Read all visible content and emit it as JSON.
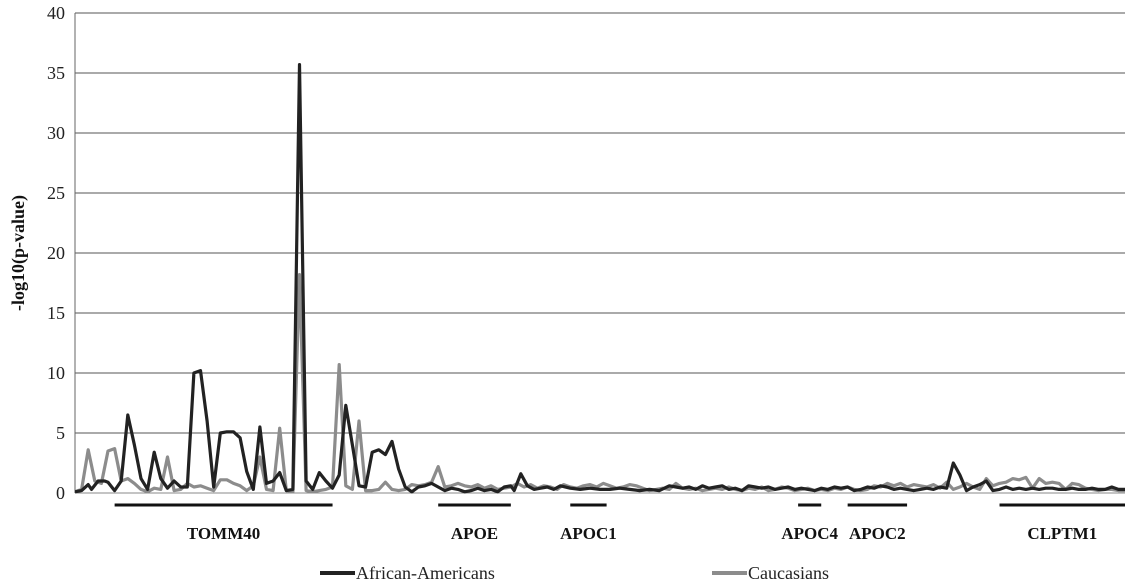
{
  "chart_data": {
    "type": "line",
    "title": "",
    "xlabel": "",
    "ylabel": "-log10(p-value)",
    "ylim": [
      0,
      40
    ],
    "yticks": [
      "0",
      "5",
      "10",
      "15",
      "20",
      "25",
      "30",
      "35",
      "40"
    ],
    "grid": true,
    "legend_position": "bottom",
    "n_snps": 160,
    "series": [
      {
        "name": "African-Americans",
        "color": "#222222",
        "points": [
          [
            0,
            0.1
          ],
          [
            2,
            0.2
          ],
          [
            4,
            0.7
          ],
          [
            5,
            0.3
          ],
          [
            7,
            1.0
          ],
          [
            9,
            1.0
          ],
          [
            10,
            0.9
          ],
          [
            12,
            0.2
          ],
          [
            14,
            1.0
          ],
          [
            16,
            6.5
          ],
          [
            18,
            4.0
          ],
          [
            20,
            1.2
          ],
          [
            22,
            0.3
          ],
          [
            24,
            3.4
          ],
          [
            26,
            1.2
          ],
          [
            28,
            0.4
          ],
          [
            30,
            1.0
          ],
          [
            32,
            0.5
          ],
          [
            34,
            0.5
          ],
          [
            36,
            10.0
          ],
          [
            38,
            10.2
          ],
          [
            40,
            6.0
          ],
          [
            42,
            0.5
          ],
          [
            44,
            5.0
          ],
          [
            46,
            5.1
          ],
          [
            48,
            5.1
          ],
          [
            50,
            4.6
          ],
          [
            52,
            1.8
          ],
          [
            54,
            0.3
          ],
          [
            56,
            5.5
          ],
          [
            58,
            0.8
          ],
          [
            60,
            1.0
          ],
          [
            62,
            1.7
          ],
          [
            64,
            0.2
          ],
          [
            66,
            0.3
          ],
          [
            68,
            35.7
          ],
          [
            70,
            1.0
          ],
          [
            72,
            0.3
          ],
          [
            74,
            1.7
          ],
          [
            76,
            1.0
          ],
          [
            78,
            0.4
          ],
          [
            80,
            1.5
          ],
          [
            82,
            7.3
          ],
          [
            84,
            4.0
          ],
          [
            86,
            0.6
          ],
          [
            88,
            0.5
          ],
          [
            90,
            3.4
          ],
          [
            92,
            3.6
          ],
          [
            94,
            3.2
          ],
          [
            96,
            4.3
          ],
          [
            98,
            2.0
          ],
          [
            100,
            0.5
          ],
          [
            102,
            0.1
          ],
          [
            104,
            0.5
          ],
          [
            106,
            0.6
          ],
          [
            108,
            0.8
          ],
          [
            110,
            0.5
          ],
          [
            112,
            0.2
          ],
          [
            114,
            0.4
          ],
          [
            116,
            0.3
          ],
          [
            118,
            0.1
          ],
          [
            120,
            0.2
          ],
          [
            122,
            0.4
          ],
          [
            124,
            0.2
          ],
          [
            126,
            0.3
          ],
          [
            128,
            0.1
          ],
          [
            130,
            0.5
          ],
          [
            132,
            0.6
          ],
          [
            133,
            0.2
          ],
          [
            135,
            1.6
          ],
          [
            137,
            0.6
          ],
          [
            139,
            0.3
          ],
          [
            141,
            0.4
          ],
          [
            143,
            0.5
          ],
          [
            145,
            0.3
          ],
          [
            147,
            0.6
          ],
          [
            150,
            0.4
          ],
          [
            153,
            0.3
          ],
          [
            156,
            0.4
          ],
          [
            159,
            0.3
          ],
          [
            162,
            0.3
          ],
          [
            165,
            0.4
          ],
          [
            168,
            0.3
          ],
          [
            171,
            0.2
          ],
          [
            174,
            0.3
          ],
          [
            177,
            0.2
          ],
          [
            180,
            0.6
          ],
          [
            182,
            0.5
          ],
          [
            184,
            0.4
          ],
          [
            186,
            0.5
          ],
          [
            188,
            0.3
          ],
          [
            190,
            0.6
          ],
          [
            192,
            0.4
          ],
          [
            194,
            0.5
          ],
          [
            196,
            0.6
          ],
          [
            198,
            0.3
          ],
          [
            200,
            0.4
          ],
          [
            202,
            0.2
          ],
          [
            204,
            0.6
          ],
          [
            206,
            0.5
          ],
          [
            208,
            0.4
          ],
          [
            210,
            0.5
          ],
          [
            212,
            0.3
          ],
          [
            214,
            0.4
          ],
          [
            216,
            0.5
          ],
          [
            218,
            0.3
          ],
          [
            220,
            0.4
          ],
          [
            222,
            0.3
          ],
          [
            224,
            0.2
          ],
          [
            226,
            0.4
          ],
          [
            228,
            0.3
          ],
          [
            230,
            0.5
          ],
          [
            232,
            0.4
          ],
          [
            234,
            0.5
          ],
          [
            236,
            0.2
          ],
          [
            238,
            0.3
          ],
          [
            240,
            0.5
          ],
          [
            242,
            0.4
          ],
          [
            244,
            0.6
          ],
          [
            246,
            0.5
          ],
          [
            248,
            0.3
          ],
          [
            250,
            0.4
          ],
          [
            252,
            0.3
          ],
          [
            254,
            0.2
          ],
          [
            256,
            0.3
          ],
          [
            258,
            0.4
          ],
          [
            260,
            0.3
          ],
          [
            262,
            0.5
          ],
          [
            264,
            0.4
          ],
          [
            266,
            2.5
          ],
          [
            268,
            1.5
          ],
          [
            270,
            0.2
          ],
          [
            272,
            0.5
          ],
          [
            274,
            0.7
          ],
          [
            276,
            1.0
          ],
          [
            278,
            0.2
          ],
          [
            280,
            0.3
          ],
          [
            282,
            0.5
          ],
          [
            284,
            0.3
          ],
          [
            286,
            0.4
          ],
          [
            288,
            0.3
          ],
          [
            290,
            0.4
          ],
          [
            292,
            0.3
          ],
          [
            294,
            0.4
          ],
          [
            296,
            0.4
          ],
          [
            298,
            0.3
          ],
          [
            300,
            0.3
          ],
          [
            302,
            0.4
          ],
          [
            304,
            0.3
          ],
          [
            306,
            0.3
          ],
          [
            308,
            0.4
          ],
          [
            310,
            0.3
          ],
          [
            312,
            0.3
          ],
          [
            314,
            0.5
          ],
          [
            316,
            0.3
          ],
          [
            318,
            0.3
          ]
        ]
      },
      {
        "name": "Caucasians",
        "color": "#8c8c8c",
        "points": [
          [
            0,
            0.1
          ],
          [
            2,
            0.3
          ],
          [
            4,
            3.6
          ],
          [
            6,
            1.0
          ],
          [
            8,
            0.8
          ],
          [
            10,
            3.5
          ],
          [
            12,
            3.7
          ],
          [
            14,
            1.0
          ],
          [
            16,
            1.2
          ],
          [
            18,
            0.8
          ],
          [
            20,
            0.3
          ],
          [
            22,
            0.1
          ],
          [
            24,
            0.4
          ],
          [
            26,
            0.3
          ],
          [
            28,
            3.0
          ],
          [
            30,
            0.2
          ],
          [
            32,
            0.3
          ],
          [
            34,
            0.8
          ],
          [
            36,
            0.5
          ],
          [
            38,
            0.6
          ],
          [
            40,
            0.4
          ],
          [
            42,
            0.2
          ],
          [
            44,
            1.1
          ],
          [
            46,
            1.1
          ],
          [
            48,
            0.8
          ],
          [
            50,
            0.6
          ],
          [
            52,
            0.2
          ],
          [
            54,
            0.6
          ],
          [
            56,
            3.0
          ],
          [
            58,
            0.3
          ],
          [
            60,
            0.2
          ],
          [
            62,
            5.4
          ],
          [
            64,
            0.2
          ],
          [
            66,
            0.1
          ],
          [
            68,
            18.2
          ],
          [
            70,
            0.2
          ],
          [
            72,
            0.1
          ],
          [
            74,
            0.2
          ],
          [
            76,
            0.3
          ],
          [
            78,
            0.5
          ],
          [
            80,
            10.7
          ],
          [
            82,
            0.6
          ],
          [
            84,
            0.3
          ],
          [
            86,
            6.0
          ],
          [
            88,
            0.2
          ],
          [
            90,
            0.2
          ],
          [
            92,
            0.3
          ],
          [
            94,
            0.9
          ],
          [
            96,
            0.3
          ],
          [
            98,
            0.2
          ],
          [
            100,
            0.3
          ],
          [
            102,
            0.7
          ],
          [
            104,
            0.6
          ],
          [
            106,
            0.7
          ],
          [
            108,
            0.9
          ],
          [
            110,
            2.2
          ],
          [
            112,
            0.5
          ],
          [
            114,
            0.6
          ],
          [
            116,
            0.8
          ],
          [
            118,
            0.6
          ],
          [
            120,
            0.5
          ],
          [
            122,
            0.7
          ],
          [
            124,
            0.4
          ],
          [
            126,
            0.6
          ],
          [
            128,
            0.3
          ],
          [
            130,
            0.4
          ],
          [
            132,
            0.5
          ],
          [
            134,
            0.8
          ],
          [
            136,
            0.5
          ],
          [
            138,
            0.7
          ],
          [
            140,
            0.4
          ],
          [
            142,
            0.6
          ],
          [
            144,
            0.5
          ],
          [
            146,
            0.3
          ],
          [
            148,
            0.7
          ],
          [
            150,
            0.5
          ],
          [
            152,
            0.4
          ],
          [
            154,
            0.6
          ],
          [
            156,
            0.7
          ],
          [
            158,
            0.5
          ],
          [
            160,
            0.8
          ],
          [
            162,
            0.6
          ],
          [
            164,
            0.4
          ],
          [
            166,
            0.5
          ],
          [
            168,
            0.7
          ],
          [
            170,
            0.6
          ],
          [
            172,
            0.4
          ],
          [
            174,
            0.2
          ],
          [
            176,
            0.3
          ],
          [
            178,
            0.4
          ],
          [
            180,
            0.3
          ],
          [
            182,
            0.8
          ],
          [
            184,
            0.4
          ],
          [
            186,
            0.3
          ],
          [
            188,
            0.4
          ],
          [
            190,
            0.2
          ],
          [
            192,
            0.3
          ],
          [
            194,
            0.4
          ],
          [
            196,
            0.3
          ],
          [
            198,
            0.5
          ],
          [
            200,
            0.3
          ],
          [
            202,
            0.2
          ],
          [
            204,
            0.4
          ],
          [
            206,
            0.3
          ],
          [
            208,
            0.5
          ],
          [
            210,
            0.2
          ],
          [
            212,
            0.3
          ],
          [
            214,
            0.5
          ],
          [
            216,
            0.4
          ],
          [
            218,
            0.2
          ],
          [
            220,
            0.3
          ],
          [
            222,
            0.4
          ],
          [
            224,
            0.2
          ],
          [
            226,
            0.3
          ],
          [
            228,
            0.2
          ],
          [
            230,
            0.4
          ],
          [
            232,
            0.3
          ],
          [
            234,
            0.5
          ],
          [
            236,
            0.3
          ],
          [
            238,
            0.2
          ],
          [
            240,
            0.3
          ],
          [
            242,
            0.6
          ],
          [
            244,
            0.5
          ],
          [
            246,
            0.8
          ],
          [
            248,
            0.6
          ],
          [
            250,
            0.8
          ],
          [
            252,
            0.5
          ],
          [
            254,
            0.7
          ],
          [
            256,
            0.6
          ],
          [
            258,
            0.5
          ],
          [
            260,
            0.7
          ],
          [
            262,
            0.4
          ],
          [
            264,
            0.9
          ],
          [
            266,
            0.3
          ],
          [
            268,
            0.5
          ],
          [
            270,
            0.8
          ],
          [
            272,
            0.5
          ],
          [
            274,
            0.3
          ],
          [
            276,
            1.2
          ],
          [
            278,
            0.6
          ],
          [
            280,
            0.8
          ],
          [
            282,
            0.9
          ],
          [
            284,
            1.2
          ],
          [
            286,
            1.1
          ],
          [
            288,
            1.3
          ],
          [
            290,
            0.4
          ],
          [
            292,
            1.2
          ],
          [
            294,
            0.8
          ],
          [
            296,
            0.9
          ],
          [
            298,
            0.8
          ],
          [
            300,
            0.3
          ],
          [
            302,
            0.8
          ],
          [
            304,
            0.7
          ],
          [
            306,
            0.4
          ],
          [
            308,
            0.3
          ],
          [
            310,
            0.2
          ],
          [
            312,
            0.3
          ],
          [
            314,
            0.3
          ],
          [
            316,
            0.2
          ],
          [
            318,
            0.2
          ]
        ]
      }
    ],
    "genes": [
      {
        "name": "TOMM40",
        "start": 12,
        "end": 78
      },
      {
        "name": "APOE",
        "start": 110,
        "end": 132
      },
      {
        "name": "APOC1",
        "start": 150,
        "end": 161
      },
      {
        "name": "APOC4",
        "start": 219,
        "end": 226
      },
      {
        "name": "APOC2",
        "start": 234,
        "end": 252
      },
      {
        "name": "CLPTM1",
        "start": 280,
        "end": 400
      }
    ]
  }
}
